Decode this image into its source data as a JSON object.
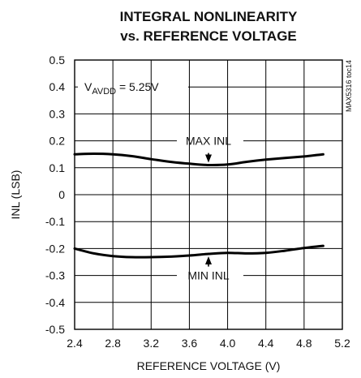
{
  "chart_data": {
    "type": "line",
    "title_line1": "INTEGRAL NONLINEARITY",
    "title_line2": "vs. REFERENCE VOLTAGE",
    "xlabel": "REFERENCE VOLTAGE (V)",
    "ylabel": "INL (LSB)",
    "xlim": [
      2.4,
      5.2
    ],
    "ylim": [
      -0.5,
      0.5
    ],
    "grid": true,
    "x_ticks": [
      2.4,
      2.8,
      3.2,
      3.6,
      4.0,
      4.4,
      4.8,
      5.2
    ],
    "x_tick_labels": [
      "2.4",
      "2.8",
      "3.2",
      "3.6",
      "4.0",
      "4.4",
      "4.8",
      "5.2"
    ],
    "y_ticks": [
      0.5,
      0.4,
      0.3,
      0.2,
      0.1,
      0,
      -0.1,
      -0.2,
      -0.3,
      -0.4,
      -0.5
    ],
    "y_tick_labels": [
      "0.5",
      "0.4",
      "0.3",
      "0.2",
      "0.1",
      "0",
      "-0.1",
      "-0.2",
      "-0.3",
      "-0.4",
      "-0.5"
    ],
    "condition": {
      "prefix": "V",
      "subscript": "AVDD",
      "suffix": " = 5.25V"
    },
    "figure_code": "MAX5316 toc14",
    "series": [
      {
        "name": "MAX INL",
        "x": [
          2.4,
          2.6,
          2.8,
          3.0,
          3.2,
          3.4,
          3.6,
          3.8,
          4.0,
          4.2,
          4.4,
          4.6,
          4.8,
          5.0
        ],
        "y": [
          0.15,
          0.152,
          0.15,
          0.143,
          0.132,
          0.122,
          0.115,
          0.11,
          0.112,
          0.122,
          0.13,
          0.136,
          0.142,
          0.15
        ]
      },
      {
        "name": "MIN INL",
        "x": [
          2.4,
          2.6,
          2.8,
          3.0,
          3.2,
          3.4,
          3.6,
          3.8,
          4.0,
          4.2,
          4.4,
          4.6,
          4.8,
          5.0
        ],
        "y": [
          -0.2,
          -0.218,
          -0.228,
          -0.232,
          -0.232,
          -0.23,
          -0.226,
          -0.22,
          -0.216,
          -0.218,
          -0.216,
          -0.208,
          -0.198,
          -0.19
        ]
      }
    ],
    "annotations": [
      {
        "text": "MAX INL",
        "series": "MAX INL",
        "at_x": 3.8,
        "pointer": "down"
      },
      {
        "text": "MIN INL",
        "series": "MIN INL",
        "at_x": 3.8,
        "pointer": "up"
      }
    ]
  }
}
